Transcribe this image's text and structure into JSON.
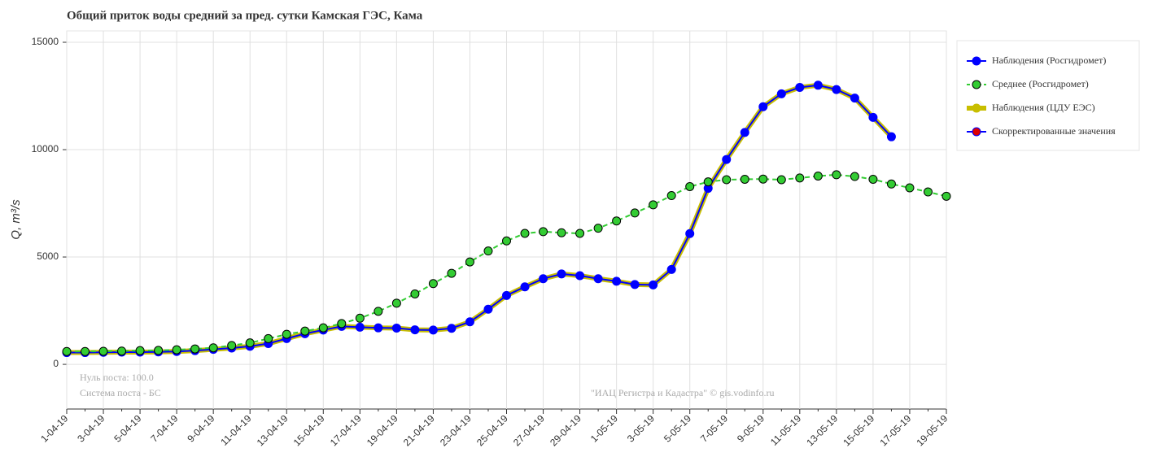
{
  "chart_data": {
    "type": "line",
    "title": "Общий приток воды средний за пред. сутки Камская ГЭС,  Кама",
    "y_label": "Q, m³/s",
    "annotations": [
      "Нуль поста: 100.0",
      "Система поста - БС",
      "\"ИАЦ Регистра и Кадастра\" © gis.vodinfo.ru"
    ],
    "categories": [
      "1-04-19",
      null,
      "3-04-19",
      null,
      "5-04-19",
      null,
      "7-04-19",
      null,
      "9-04-19",
      null,
      "11-04-19",
      null,
      "13-04-19",
      null,
      "15-04-19",
      null,
      "17-04-19",
      null,
      "19-04-19",
      null,
      "21-04-19",
      null,
      "23-04-19",
      null,
      "25-04-19",
      null,
      "27-04-19",
      null,
      "29-04-19",
      null,
      "1-05-19",
      null,
      "3-05-19",
      null,
      "5-05-19",
      null,
      "7-05-19",
      null,
      "9-05-19",
      null,
      "11-05-19",
      null,
      "13-05-19",
      null,
      "15-05-19",
      null,
      "17-05-19",
      null,
      "19-05-19"
    ],
    "ylim": [
      -2080,
      15530
    ],
    "yticks": [
      0,
      5000,
      10000,
      15000
    ],
    "grid": true,
    "legend_position": "upper-right",
    "series": [
      {
        "name": "Наблюдения (ЦДУ ЕЭС)",
        "color": "#c8be00",
        "marker_color": "#c8be00",
        "line_width": 6,
        "dashed": false,
        "markers": false,
        "values": [
          550,
          550,
          560,
          570,
          570,
          580,
          600,
          640,
          700,
          760,
          840,
          970,
          1200,
          1430,
          1600,
          1770,
          1730,
          1700,
          1690,
          1610,
          1600,
          1680,
          1980,
          2570,
          3210,
          3610,
          3990,
          4210,
          4130,
          3990,
          3870,
          3720,
          3700,
          4420,
          6090,
          8200,
          9540,
          10800,
          12000,
          12600,
          12900,
          13000,
          12800,
          12400,
          11500,
          10600,
          null,
          null,
          null
        ]
      },
      {
        "name": "Наблюдения (Росгидромет)",
        "color": "#0000ff",
        "marker_color": "#0000ff",
        "line_width": 2,
        "dashed": false,
        "markers": true,
        "values": [
          550,
          550,
          560,
          570,
          570,
          580,
          600,
          640,
          700,
          760,
          840,
          970,
          1200,
          1430,
          1600,
          1770,
          1730,
          1700,
          1690,
          1610,
          1600,
          1680,
          1980,
          2570,
          3210,
          3610,
          3990,
          4210,
          4130,
          3990,
          3870,
          3720,
          3700,
          4420,
          6090,
          8200,
          9540,
          10800,
          12000,
          12600,
          12900,
          13000,
          12800,
          12400,
          11500,
          10600,
          null,
          null,
          null
        ]
      },
      {
        "name": "Среднее (Росгидромет)",
        "color": "#33cc33",
        "marker_color": "#33cc33",
        "line_width": 2,
        "dashed": true,
        "markers": true,
        "values": [
          600,
          600,
          610,
          620,
          640,
          650,
          680,
          720,
          770,
          880,
          1000,
          1200,
          1400,
          1550,
          1700,
          1900,
          2150,
          2470,
          2850,
          3280,
          3760,
          4240,
          4770,
          5280,
          5750,
          6100,
          6180,
          6130,
          6100,
          6340,
          6680,
          7050,
          7430,
          7860,
          8280,
          8500,
          8600,
          8620,
          8630,
          8600,
          8680,
          8770,
          8830,
          8750,
          8620,
          8400,
          8220,
          8030,
          7830
        ]
      },
      {
        "name": "Скорректированные значения",
        "color": "#0000ff",
        "marker_color": "#dd0000",
        "line_width": 2,
        "dashed": false,
        "markers": true,
        "values": [
          null,
          null,
          null,
          null,
          null,
          null,
          null,
          null,
          null,
          null,
          null,
          null,
          null,
          null,
          null,
          null,
          null,
          null,
          null,
          null,
          null,
          null,
          null,
          null,
          null,
          null,
          null,
          null,
          null,
          null,
          null,
          null,
          null,
          null,
          null,
          null,
          null,
          null,
          null,
          null,
          null,
          null,
          null,
          null,
          null,
          null,
          null,
          null,
          null
        ]
      }
    ],
    "legend_order": [
      1,
      2,
      0,
      3
    ]
  }
}
